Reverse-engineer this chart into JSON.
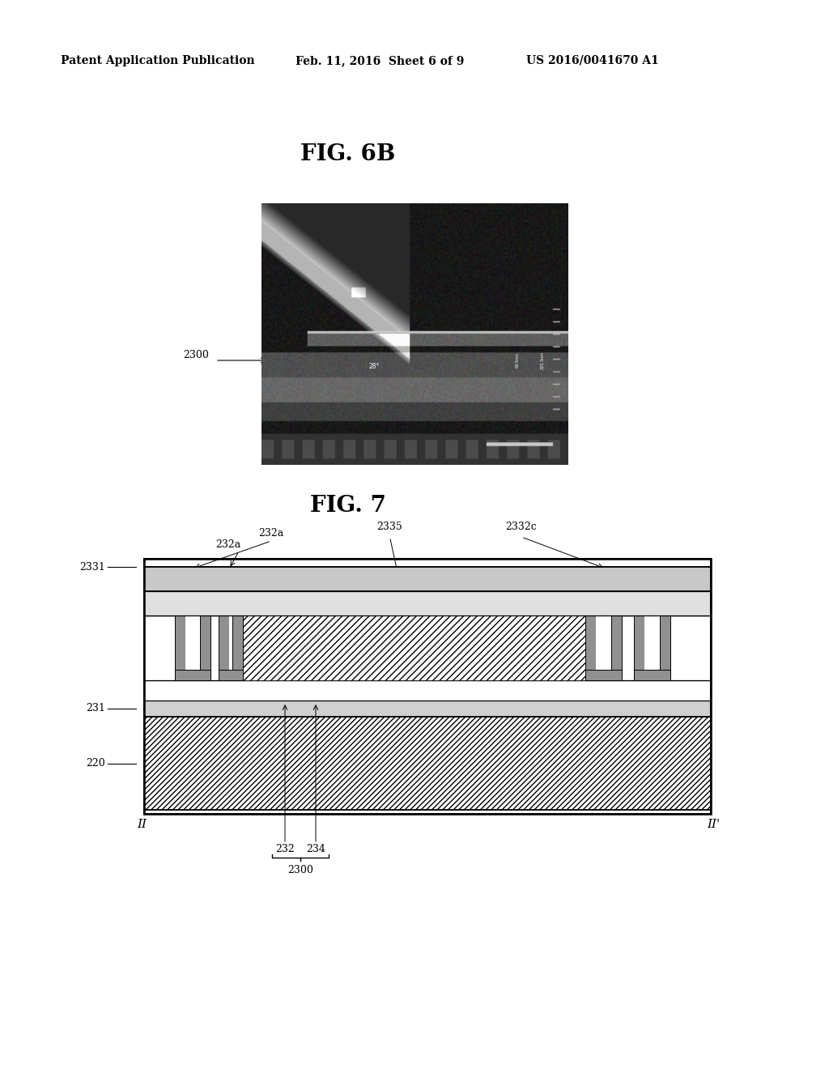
{
  "bg_color": "#ffffff",
  "header_left": "Patent Application Publication",
  "header_mid": "Feb. 11, 2016  Sheet 6 of 9",
  "header_right": "US 2016/0041670 A1",
  "fig6b_title": "FIG. 6B",
  "fig7_title": "FIG. 7",
  "label_2300_6b": "2300",
  "label_232a_top": "232a",
  "label_232a_left": "232a",
  "label_2335": "2335",
  "label_2332c": "2332c",
  "label_2331": "2331",
  "label_231": "231",
  "label_220": "220",
  "label_232": "232",
  "label_234": "234",
  "label_2300_bot": "2300",
  "label_II_left": "II",
  "label_II_right": "II'",
  "font_size_header": 10,
  "font_size_title": 20,
  "font_size_label": 9
}
